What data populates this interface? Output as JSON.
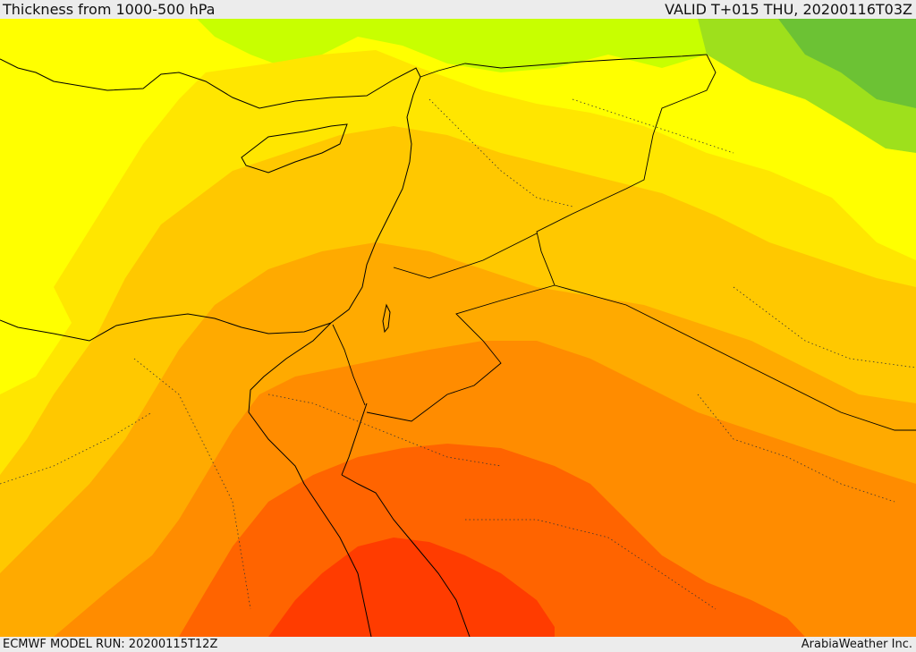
{
  "header": {
    "title": "Thickness from 1000-500 hPa",
    "valid": "VALID T+015 THU, 20200116T03Z"
  },
  "footer": {
    "model_run": "ECMWF MODEL RUN: 20200115T12Z",
    "credit": "ArabiaWeather Inc."
  },
  "colors": {
    "band_green_dark": "#6cc234",
    "band_green": "#9ee01c",
    "band_lime": "#c8ff00",
    "band_yellow": "#ffff00",
    "band_yellow_orange": "#ffe600",
    "band_light_orange": "#ffc800",
    "band_orange": "#ffaa00",
    "band_deep_orange": "#ff8c00",
    "band_red_orange": "#ff6400",
    "band_red": "#ff3c00",
    "coastline": "#000000",
    "border": "#000000"
  }
}
